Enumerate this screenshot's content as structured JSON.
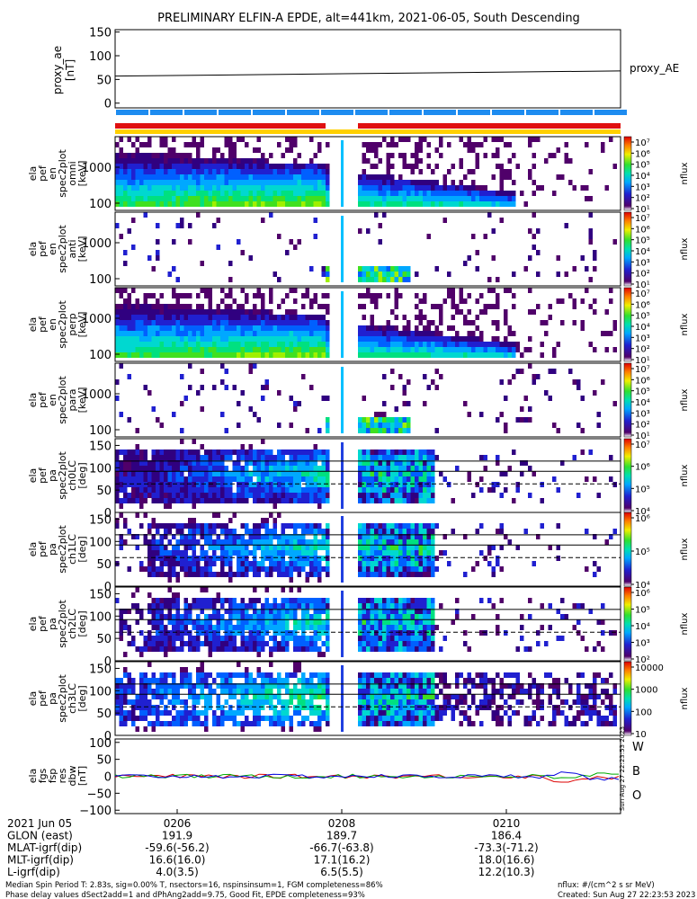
{
  "title": "PRELIMINARY ELFIN-A EPDE, alt=441km, 2021-06-05, South Descending",
  "proxy_ae": {
    "ylabel": [
      "proxy_ae",
      "[nT]"
    ],
    "yticks": [
      "150",
      "100",
      "50",
      "0"
    ],
    "ylim": [
      -10,
      155
    ],
    "legend": "proxy_AE",
    "values_start": 57,
    "values_end": 68
  },
  "spectrogram_panels": [
    {
      "id": "en-omni",
      "ylabel": [
        "ela",
        "pef",
        "en",
        "spec2plot",
        "omni",
        "[keV]"
      ],
      "yticks": [
        "1000",
        "100"
      ],
      "cbar_ticks": [
        "10⁷",
        "10⁶",
        "10⁵",
        "10⁴",
        "10³",
        "10²",
        "10¹"
      ],
      "cbar_label": "nflux",
      "type": "energy"
    },
    {
      "id": "en-anti",
      "ylabel": [
        "ela",
        "pef",
        "en",
        "spec2plot",
        "anti",
        "[keV]"
      ],
      "yticks": [
        "1000",
        "100"
      ],
      "cbar_ticks": [
        "10⁷",
        "10⁶",
        "10⁵",
        "10⁴",
        "10³",
        "10²",
        "10¹"
      ],
      "cbar_label": "nflux",
      "type": "energy"
    },
    {
      "id": "en-perp",
      "ylabel": [
        "ela",
        "pef",
        "en",
        "spec2plot",
        "perp",
        "[keV]"
      ],
      "yticks": [
        "1000",
        "100"
      ],
      "cbar_ticks": [
        "10⁷",
        "10⁶",
        "10⁵",
        "10⁴",
        "10³",
        "10²",
        "10¹"
      ],
      "cbar_label": "nflux",
      "type": "energy"
    },
    {
      "id": "en-para",
      "ylabel": [
        "ela",
        "pef",
        "en",
        "spec2plot",
        "para",
        "[keV]"
      ],
      "yticks": [
        "1000",
        "100"
      ],
      "cbar_ticks": [
        "10⁷",
        "10⁶",
        "10⁵",
        "10⁴",
        "10³",
        "10²",
        "10¹"
      ],
      "cbar_label": "nflux",
      "type": "energy"
    },
    {
      "id": "pa-ch0",
      "ylabel": [
        "ela",
        "pef",
        "pa",
        "spec2plot",
        "ch0LC",
        "[deg]"
      ],
      "yticks": [
        "150",
        "100",
        "50",
        "0"
      ],
      "cbar_ticks": [
        "10⁷",
        "10⁶",
        "10⁵",
        "10⁴"
      ],
      "cbar_label": "nflux",
      "type": "pitch"
    },
    {
      "id": "pa-ch1",
      "ylabel": [
        "ela",
        "pef",
        "pa",
        "spec2plot",
        "ch1LC",
        "[deg]"
      ],
      "yticks": [
        "150",
        "100",
        "50",
        "0"
      ],
      "cbar_ticks": [
        "10⁶",
        "10⁵",
        "10⁴"
      ],
      "cbar_label": "nflux",
      "type": "pitch"
    },
    {
      "id": "pa-ch2",
      "ylabel": [
        "ela",
        "pef",
        "pa",
        "spec2plot",
        "ch2LC",
        "[deg]"
      ],
      "yticks": [
        "150",
        "100",
        "50",
        "0"
      ],
      "cbar_ticks": [
        "10⁶",
        "10⁵",
        "10⁴",
        "10³",
        "10²"
      ],
      "cbar_label": "nflux",
      "type": "pitch"
    },
    {
      "id": "pa-ch3",
      "ylabel": [
        "ela",
        "pef",
        "pa",
        "spec2plot",
        "ch3LC",
        "[deg]"
      ],
      "yticks": [
        "150",
        "100",
        "50",
        "0"
      ],
      "cbar_ticks": [
        "10000",
        "1000",
        "100",
        "10"
      ],
      "cbar_label": "nflux",
      "type": "pitch"
    }
  ],
  "field_panel": {
    "ylabel": [
      "ela",
      "fgs",
      "fsp",
      "res",
      "dbw",
      "[nT]"
    ],
    "yticks": [
      "100",
      "50",
      "0",
      "−50",
      "−100"
    ],
    "ylim": [
      -110,
      110
    ],
    "legend": [
      {
        "label": "W",
        "color": "#dd0000"
      },
      {
        "label": "B",
        "color": "#00aa00"
      },
      {
        "label": "O",
        "color": "#0000dd"
      }
    ]
  },
  "x_axis": {
    "ticks": [
      "0206",
      "0208",
      "0210"
    ],
    "rows": [
      {
        "label": "2021 Jun 05",
        "values": [
          "0206",
          "0208",
          "0210"
        ]
      },
      {
        "label": "GLON (east)",
        "values": [
          "191.9",
          "189.7",
          "186.4"
        ]
      },
      {
        "label": "MLAT-igrf(dip)",
        "values": [
          "-59.6(-56.2)",
          "-66.7(-63.8)",
          "-73.3(-71.2)"
        ]
      },
      {
        "label": "MLT-igrf(dip)",
        "values": [
          "16.6(16.0)",
          "17.1(16.2)",
          "18.0(16.6)"
        ]
      },
      {
        "label": "L-igrf(dip)",
        "values": [
          "4.0(3.5)",
          "6.5(5.5)",
          "12.2(10.3)"
        ]
      }
    ]
  },
  "footer": {
    "line1": "Median Spin Period T: 2.83s, sig=0.00% T, nsectors=16, nspinsinsum=1, FGM completeness=86%",
    "line2": "Phase delay values dSect2add=1 and dPhAng2add=9.75, Good Fit, EPDE completeness=93%",
    "units": "nflux: #/(cm^2 s sr MeV)",
    "created": "Created: Sun Aug 27 22:23:53 2023",
    "side_stamp": "Sun Aug 27 22:23:53 2023"
  },
  "colors": {
    "state_bar": "#1e8cf0",
    "red_bar": "#e01010",
    "yellow_bar": "#ffd000",
    "proxy_line": "#000000"
  },
  "chart_data": [
    {
      "type": "line",
      "title": "proxy_ae",
      "ylim": [
        -10,
        155
      ],
      "series": [
        {
          "name": "proxy_AE",
          "values": [
            57,
            68
          ]
        }
      ]
    },
    {
      "type": "heatmap",
      "title": "spectrograms",
      "note_units": "nflux"
    },
    {
      "type": "line",
      "title": "fgs residuals",
      "ylim": [
        -110,
        110
      ],
      "series": [
        {
          "name": "W"
        },
        {
          "name": "B"
        },
        {
          "name": "O"
        }
      ]
    }
  ]
}
